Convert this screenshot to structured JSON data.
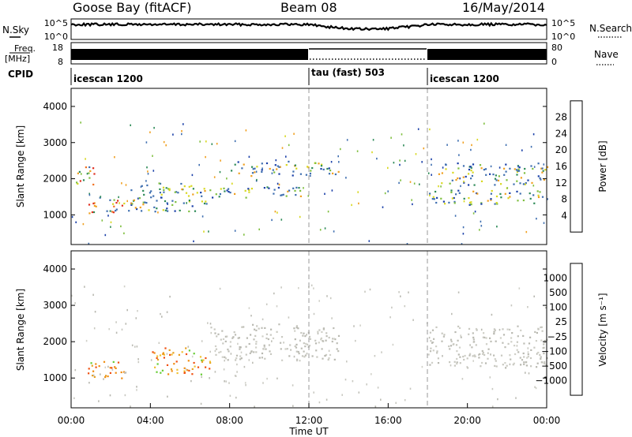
{
  "header": {
    "station": "Goose Bay (fitACF)",
    "beam": "Beam 08",
    "date": "16/May/2014"
  },
  "noise_panel": {
    "left_label": "N.Sky",
    "right_label": "N.Search",
    "left_ticks": [
      "10^5",
      "10^0"
    ],
    "right_ticks": [
      "10^5",
      "10^0"
    ]
  },
  "freq_panel": {
    "left_label_1": "Freq.",
    "left_label_2": "[MHz]",
    "right_label": "Nave",
    "left_ticks": [
      "18",
      "8"
    ],
    "right_ticks": [
      "80",
      "0"
    ]
  },
  "cpid_panel": {
    "label": "CPID",
    "segments": [
      {
        "start_hour": 0,
        "end_hour": 12,
        "label": "icescan 1200"
      },
      {
        "start_hour": 12,
        "end_hour": 18,
        "label": "tau (fast) 503"
      },
      {
        "start_hour": 18,
        "end_hour": 24,
        "label": "icescan 1200"
      }
    ]
  },
  "chart_data": [
    {
      "type": "heatmap",
      "title": "",
      "ylabel": "Slant Range [km]",
      "xlabel": "",
      "xlim": [
        0,
        24
      ],
      "ylim": [
        180,
        4500
      ],
      "yticks": [
        1000,
        2000,
        3000,
        4000
      ],
      "ytick_labels": [
        "1000",
        "2000",
        "3000",
        "4000"
      ],
      "colorbar": {
        "label": "Power [dB]",
        "ticks": [
          "4",
          "8",
          "12",
          "16",
          "20",
          "24",
          "28"
        ],
        "colors": [
          "#1020ff",
          "#1a3fa8",
          "#3f6fb0",
          "#2e8b57",
          "#7fbf3f",
          "#d8d820",
          "#f0a020",
          "#f07020",
          "#e03020",
          "#ff0000"
        ]
      },
      "echo_bands_hours_km": [
        {
          "x": [
            0.2,
            1.2
          ],
          "y": [
            1800,
            2350
          ],
          "level": "high"
        },
        {
          "x": [
            0.8,
            3.0
          ],
          "y": [
            1050,
            1500
          ],
          "level": "high"
        },
        {
          "x": [
            3.0,
            7.0
          ],
          "y": [
            1100,
            1900
          ],
          "level": "mid"
        },
        {
          "x": [
            7.0,
            11.8
          ],
          "y": [
            1500,
            1800
          ],
          "level": "mid"
        },
        {
          "x": [
            8.0,
            13.5
          ],
          "y": [
            2100,
            2500
          ],
          "level": "mid"
        },
        {
          "x": [
            18.0,
            24.0
          ],
          "y": [
            1300,
            1700
          ],
          "level": "mid"
        },
        {
          "x": [
            18.5,
            24.0
          ],
          "y": [
            1850,
            2450
          ],
          "level": "mid"
        }
      ]
    },
    {
      "type": "heatmap",
      "title": "",
      "ylabel": "Slant Range [km]",
      "xlabel": "Time UT",
      "xlim": [
        0,
        24
      ],
      "ylim": [
        180,
        4500
      ],
      "yticks": [
        1000,
        2000,
        3000,
        4000
      ],
      "ytick_labels": [
        "1000",
        "2000",
        "3000",
        "4000"
      ],
      "xticks": [
        0,
        4,
        8,
        12,
        16,
        20,
        24
      ],
      "xtick_labels": [
        "00:00",
        "04:00",
        "08:00",
        "12:00",
        "16:00",
        "20:00",
        "00:00"
      ],
      "colorbar": {
        "label": "Velocity [m s⁻¹]",
        "ticks": [
          "1000",
          "500",
          "100",
          "25",
          "−25",
          "−100",
          "−500",
          "−1000"
        ],
        "colors": [
          "#1a33cc",
          "#3a6ec0",
          "#2f8f3f",
          "#66cc33",
          "#c8c8c0",
          "#c8c8c0",
          "#f0c030",
          "#f08c10",
          "#f05010",
          "#e01010"
        ]
      },
      "echo_bands_hours_km": [
        {
          "x": [
            0.8,
            2.8
          ],
          "y": [
            1000,
            1500
          ],
          "level": "orange"
        },
        {
          "x": [
            4.0,
            7.0
          ],
          "y": [
            1100,
            1850
          ],
          "level": "orange"
        },
        {
          "x": [
            7.0,
            13.5
          ],
          "y": [
            1500,
            2500
          ],
          "level": "grey"
        },
        {
          "x": [
            18.0,
            24.0
          ],
          "y": [
            1300,
            2450
          ],
          "level": "grey"
        }
      ]
    }
  ]
}
